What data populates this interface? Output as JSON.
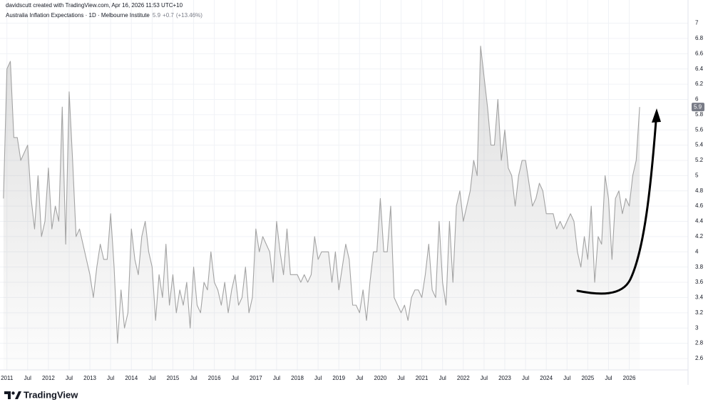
{
  "attribution": "davidscutt created with TradingView.com, Apr 16, 2026 11:53 UTC+10",
  "branding": "TradingView",
  "chart_data": {
    "type": "line",
    "legend": {
      "change": "+0.7",
      "change_pct": "(+13.46%)"
    },
    "last_value": 5.9,
    "x": [
      "2010-12",
      "2011-01",
      "2011-02",
      "2011-03",
      "2011-04",
      "2011-05",
      "2011-06",
      "2011-07",
      "2011-08",
      "2011-09",
      "2011-10",
      "2011-11",
      "2011-12",
      "2012-01",
      "2012-02",
      "2012-03",
      "2012-04",
      "2012-05",
      "2012-06",
      "2012-07",
      "2012-08",
      "2012-09",
      "2012-10",
      "2012-11",
      "2012-12",
      "2013-01",
      "2013-02",
      "2013-03",
      "2013-04",
      "2013-05",
      "2013-06",
      "2013-07",
      "2013-08",
      "2013-09",
      "2013-10",
      "2013-11",
      "2013-12",
      "2014-01",
      "2014-02",
      "2014-03",
      "2014-04",
      "2014-05",
      "2014-06",
      "2014-07",
      "2014-08",
      "2014-09",
      "2014-10",
      "2014-11",
      "2014-12",
      "2015-01",
      "2015-02",
      "2015-03",
      "2015-04",
      "2015-05",
      "2015-06",
      "2015-07",
      "2015-08",
      "2015-09",
      "2015-10",
      "2015-11",
      "2015-12",
      "2016-01",
      "2016-02",
      "2016-03",
      "2016-04",
      "2016-05",
      "2016-06",
      "2016-07",
      "2016-08",
      "2016-09",
      "2016-10",
      "2016-11",
      "2016-12",
      "2017-01",
      "2017-02",
      "2017-03",
      "2017-04",
      "2017-05",
      "2017-06",
      "2017-07",
      "2017-08",
      "2017-09",
      "2017-10",
      "2017-11",
      "2017-12",
      "2018-01",
      "2018-02",
      "2018-03",
      "2018-04",
      "2018-05",
      "2018-06",
      "2018-07",
      "2018-08",
      "2018-09",
      "2018-10",
      "2018-11",
      "2018-12",
      "2019-01",
      "2019-02",
      "2019-03",
      "2019-04",
      "2019-05",
      "2019-06",
      "2019-07",
      "2019-08",
      "2019-09",
      "2019-10",
      "2019-11",
      "2019-12",
      "2020-01",
      "2020-02",
      "2020-03",
      "2020-04",
      "2020-05",
      "2020-06",
      "2020-07",
      "2020-08",
      "2020-09",
      "2020-10",
      "2020-11",
      "2020-12",
      "2021-01",
      "2021-02",
      "2021-03",
      "2021-04",
      "2021-05",
      "2021-06",
      "2021-07",
      "2021-08",
      "2021-09",
      "2021-10",
      "2021-11",
      "2021-12",
      "2022-01",
      "2022-02",
      "2022-03",
      "2022-04",
      "2022-05",
      "2022-06",
      "2022-07",
      "2022-08",
      "2022-09",
      "2022-10",
      "2022-11",
      "2022-12",
      "2023-01",
      "2023-02",
      "2023-03",
      "2023-04",
      "2023-05",
      "2023-06",
      "2023-07",
      "2023-08",
      "2023-09",
      "2023-10",
      "2023-11",
      "2023-12",
      "2024-01",
      "2024-02",
      "2024-03",
      "2024-04",
      "2024-05",
      "2024-06",
      "2024-07",
      "2024-08",
      "2024-09",
      "2024-10",
      "2024-11",
      "2024-12",
      "2025-01",
      "2025-02",
      "2025-03",
      "2025-04",
      "2025-05",
      "2025-06",
      "2025-07",
      "2025-08",
      "2025-09",
      "2025-10",
      "2025-11",
      "2025-12",
      "2026-01",
      "2026-02",
      "2026-03",
      "2026-04"
    ],
    "series": [
      {
        "name": "Australia Inflation Expectations · 1D · Melbourne Institute",
        "color": "#a3a3a3",
        "values": [
          4.7,
          6.4,
          6.5,
          5.5,
          5.5,
          5.2,
          5.3,
          5.4,
          4.7,
          4.3,
          5.0,
          4.2,
          4.4,
          5.1,
          4.3,
          4.6,
          4.4,
          5.9,
          4.1,
          6.1,
          5.2,
          4.2,
          4.3,
          4.1,
          3.9,
          3.7,
          3.4,
          3.8,
          4.1,
          3.9,
          3.9,
          4.5,
          3.8,
          2.8,
          3.5,
          3.0,
          3.2,
          4.3,
          3.9,
          3.7,
          4.2,
          4.4,
          4.0,
          3.8,
          3.1,
          3.7,
          3.4,
          4.1,
          3.3,
          3.7,
          3.2,
          3.5,
          3.3,
          3.6,
          3.0,
          3.8,
          3.3,
          3.2,
          3.6,
          3.5,
          4.0,
          3.6,
          3.5,
          3.3,
          3.6,
          3.2,
          3.5,
          3.7,
          3.3,
          3.4,
          3.8,
          3.2,
          3.4,
          4.3,
          4.0,
          4.2,
          4.1,
          4.0,
          3.6,
          4.4,
          4.0,
          3.7,
          4.3,
          3.7,
          3.7,
          3.7,
          3.6,
          3.7,
          3.6,
          3.7,
          4.2,
          3.9,
          4.0,
          4.0,
          4.0,
          3.6,
          4.0,
          3.5,
          3.8,
          4.1,
          3.9,
          3.3,
          3.3,
          3.2,
          3.5,
          3.1,
          3.6,
          4.0,
          4.0,
          4.7,
          4.0,
          4.0,
          4.6,
          3.4,
          3.3,
          3.2,
          3.3,
          3.1,
          3.4,
          3.5,
          3.5,
          3.4,
          3.7,
          4.1,
          3.5,
          3.4,
          4.4,
          3.6,
          3.3,
          4.4,
          3.6,
          4.6,
          4.8,
          4.4,
          4.6,
          4.8,
          5.2,
          5.0,
          6.7,
          6.3,
          5.9,
          5.4,
          5.4,
          6.0,
          5.2,
          5.6,
          5.1,
          5.0,
          4.6,
          5.0,
          5.2,
          5.2,
          4.9,
          4.6,
          4.7,
          4.9,
          4.8,
          4.5,
          4.5,
          4.5,
          4.3,
          4.4,
          4.3,
          4.4,
          4.5,
          4.4,
          4.0,
          3.8,
          4.2,
          3.9,
          4.6,
          3.6,
          4.2,
          4.1,
          5.0,
          4.7,
          3.9,
          4.7,
          4.8,
          4.5,
          4.7,
          4.6,
          5.0,
          5.2,
          5.9
        ]
      }
    ],
    "xlim": [
      "2010-11",
      "2027-06"
    ],
    "xticks": [
      {
        "value": "2011-01",
        "label": "2011"
      },
      {
        "value": "2011-07",
        "label": "Jul"
      },
      {
        "value": "2012-01",
        "label": "2012"
      },
      {
        "value": "2012-07",
        "label": "Jul"
      },
      {
        "value": "2013-01",
        "label": "2013"
      },
      {
        "value": "2013-07",
        "label": "Jul"
      },
      {
        "value": "2014-01",
        "label": "2014"
      },
      {
        "value": "2014-07",
        "label": "Jul"
      },
      {
        "value": "2015-01",
        "label": "2015"
      },
      {
        "value": "2015-07",
        "label": "Jul"
      },
      {
        "value": "2016-01",
        "label": "2016"
      },
      {
        "value": "2016-07",
        "label": "Jul"
      },
      {
        "value": "2017-01",
        "label": "2017"
      },
      {
        "value": "2017-07",
        "label": "Jul"
      },
      {
        "value": "2018-01",
        "label": "2018"
      },
      {
        "value": "2018-07",
        "label": "Jul"
      },
      {
        "value": "2019-01",
        "label": "2019"
      },
      {
        "value": "2019-07",
        "label": "Jul"
      },
      {
        "value": "2020-01",
        "label": "2020"
      },
      {
        "value": "2020-07",
        "label": "Jul"
      },
      {
        "value": "2021-01",
        "label": "2021"
      },
      {
        "value": "2021-07",
        "label": "Jul"
      },
      {
        "value": "2022-01",
        "label": "2022"
      },
      {
        "value": "2022-07",
        "label": "Jul"
      },
      {
        "value": "2023-01",
        "label": "2023"
      },
      {
        "value": "2023-07",
        "label": "Jul"
      },
      {
        "value": "2024-01",
        "label": "2024"
      },
      {
        "value": "2024-07",
        "label": "Jul"
      },
      {
        "value": "2025-01",
        "label": "2025"
      },
      {
        "value": "2025-07",
        "label": "Jul"
      },
      {
        "value": "2026-01",
        "label": "2026"
      }
    ],
    "ylim": [
      2.45,
      7.08
    ],
    "yticks": [
      2.6,
      2.8,
      3,
      3.2,
      3.4,
      3.6,
      3.8,
      4,
      4.2,
      4.4,
      4.6,
      4.8,
      5,
      5.2,
      5.4,
      5.6,
      5.8,
      6,
      6.2,
      6.4,
      6.6,
      6.8,
      7
    ],
    "grid": true
  }
}
